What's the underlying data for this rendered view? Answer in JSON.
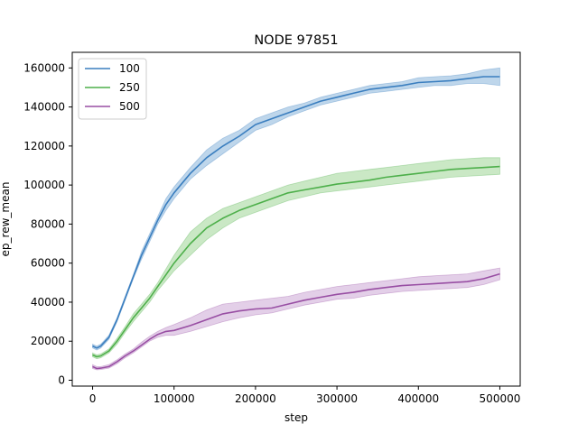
{
  "chart_data": {
    "type": "line",
    "title": "NODE 97851",
    "xlabel": "step",
    "ylabel": "ep_rew_mean",
    "xlim": [
      -25000,
      525000
    ],
    "ylim": [
      -3000,
      168000
    ],
    "x_ticks": [
      0,
      100000,
      200000,
      300000,
      400000,
      500000
    ],
    "x_tick_labels": [
      "0",
      "100000",
      "200000",
      "300000",
      "400000",
      "500000"
    ],
    "y_ticks": [
      0,
      20000,
      40000,
      60000,
      80000,
      100000,
      120000,
      140000,
      160000
    ],
    "y_tick_labels": [
      "0",
      "20000",
      "40000",
      "60000",
      "80000",
      "100000",
      "120000",
      "140000",
      "160000"
    ],
    "grid": false,
    "legend_position": "top-left",
    "shaded_band": "mean ± spread",
    "x": [
      0,
      5000,
      10000,
      20000,
      30000,
      40000,
      50000,
      60000,
      70000,
      80000,
      90000,
      100000,
      120000,
      140000,
      160000,
      180000,
      200000,
      220000,
      240000,
      260000,
      280000,
      300000,
      320000,
      340000,
      360000,
      380000,
      400000,
      420000,
      440000,
      460000,
      480000,
      500000
    ],
    "series": [
      {
        "name": "100",
        "color": "#3a7ebf",
        "fill": "#a8c8e4",
        "values": [
          17500,
          16500,
          17500,
          22000,
          31000,
          42000,
          53000,
          64000,
          73000,
          82000,
          90000,
          96000,
          106000,
          114000,
          120000,
          125000,
          131000,
          134000,
          137000,
          140000,
          143000,
          145000,
          147000,
          149000,
          150000,
          151000,
          152500,
          153000,
          153500,
          154500,
          155500,
          155500
        ],
        "lower": [
          16500,
          15500,
          16500,
          21000,
          30000,
          41000,
          52000,
          62000,
          71000,
          80000,
          87000,
          93000,
          103000,
          110000,
          116000,
          122000,
          128000,
          131000,
          135000,
          138000,
          141000,
          143000,
          145000,
          147000,
          148000,
          149000,
          150000,
          151000,
          151000,
          152000,
          152000,
          151000
        ],
        "upper": [
          18500,
          17500,
          18500,
          23000,
          32000,
          43000,
          54000,
          66000,
          75000,
          84000,
          93000,
          99000,
          109000,
          118000,
          124000,
          128000,
          134000,
          137000,
          140000,
          142000,
          145000,
          147000,
          149000,
          151000,
          152000,
          153000,
          155000,
          155500,
          156000,
          157000,
          159000,
          160000
        ]
      },
      {
        "name": "250",
        "color": "#4daf4a",
        "fill": "#b8e0b2",
        "values": [
          13000,
          12000,
          12500,
          15000,
          20000,
          26000,
          32000,
          37000,
          42000,
          48000,
          54000,
          60000,
          70000,
          78000,
          83000,
          87000,
          90000,
          93000,
          96000,
          97500,
          99000,
          100500,
          101500,
          102500,
          104000,
          105000,
          106000,
          107000,
          108000,
          108500,
          109000,
          109500
        ],
        "lower": [
          12000,
          11000,
          11500,
          14000,
          18500,
          24500,
          30000,
          35000,
          40000,
          46000,
          51000,
          56000,
          64000,
          72000,
          78000,
          83000,
          86000,
          89000,
          92000,
          94000,
          96000,
          97000,
          98000,
          99000,
          100000,
          101000,
          102000,
          103000,
          104000,
          104500,
          105000,
          105500
        ],
        "upper": [
          14000,
          13000,
          13500,
          16000,
          21500,
          27500,
          34000,
          39000,
          44000,
          50000,
          57000,
          64000,
          76000,
          83000,
          88000,
          91000,
          94000,
          97000,
          100000,
          102000,
          104000,
          106000,
          107000,
          108000,
          109000,
          110000,
          111000,
          112000,
          113000,
          113500,
          114000,
          114000
        ]
      },
      {
        "name": "500",
        "color": "#984ea3",
        "fill": "#d9bfe0",
        "values": [
          7000,
          6000,
          6200,
          7000,
          9500,
          12500,
          15000,
          18000,
          21000,
          23500,
          25000,
          25500,
          28000,
          31000,
          34000,
          35500,
          36500,
          37000,
          39000,
          41000,
          42500,
          44000,
          45000,
          46500,
          47500,
          48500,
          49000,
          49500,
          50000,
          50500,
          52000,
          54500
        ],
        "lower": [
          6000,
          5300,
          5500,
          6200,
          8500,
          11500,
          14000,
          17000,
          20000,
          22000,
          23000,
          23000,
          25000,
          27500,
          30000,
          32000,
          33500,
          34500,
          36500,
          38500,
          40000,
          41500,
          42000,
          43500,
          44500,
          45500,
          46000,
          46500,
          47000,
          47500,
          49000,
          51500
        ],
        "upper": [
          8000,
          7000,
          7000,
          8000,
          10500,
          13500,
          16000,
          19500,
          22500,
          25000,
          27000,
          28500,
          32000,
          36000,
          39000,
          40000,
          41000,
          42000,
          43000,
          45000,
          46500,
          48000,
          49000,
          50000,
          51000,
          52000,
          53000,
          53500,
          54000,
          54500,
          56000,
          57500
        ]
      }
    ]
  }
}
